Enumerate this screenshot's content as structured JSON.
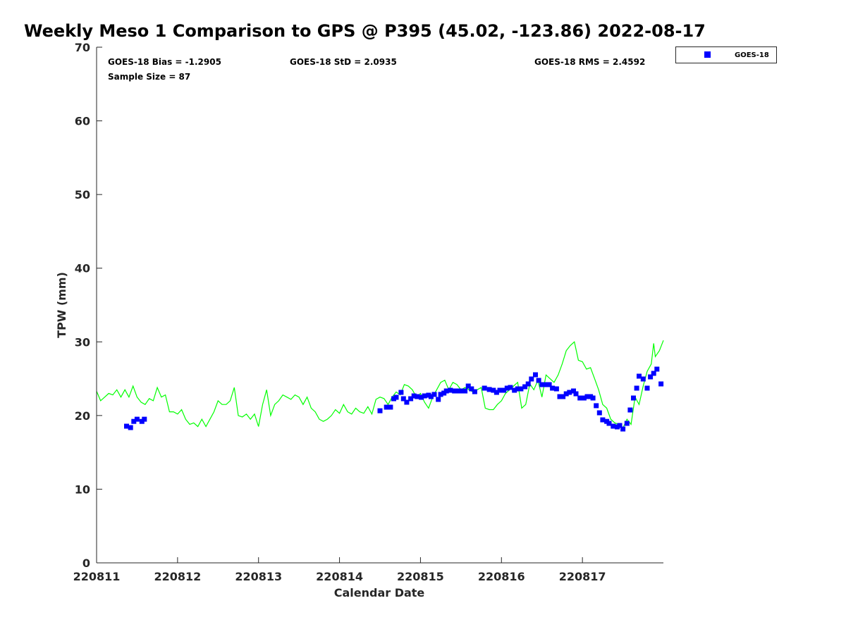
{
  "chart_data": {
    "type": "scatter",
    "title": "Weekly Meso 1 Comparison to GPS @ P395 (45.02, -123.86) 2022-08-17",
    "xlabel": "Calendar Date",
    "ylabel": "TPW (mm)",
    "xlim": [
      0,
      7
    ],
    "ylim": [
      0,
      70
    ],
    "x_units": "days since 220811",
    "x_tick_labels": [
      "220811",
      "220812",
      "220813",
      "220814",
      "220815",
      "220816",
      "220817"
    ],
    "y_ticks": [
      0,
      10,
      20,
      30,
      40,
      50,
      60,
      70
    ],
    "grid": false,
    "legend": {
      "placement": "top-right, outside plot",
      "entries": [
        "GOES-18"
      ]
    },
    "stats": {
      "bias": "GOES-18 Bias = -1.2905",
      "std": "GOES-18 StD = 2.0935",
      "rms": "GOES-18 RMS = 2.4592",
      "sample": "Sample Size = 87"
    },
    "series": [
      {
        "name": "GOES-18",
        "kind": "scatter",
        "color": "#0000ff",
        "points": [
          [
            0.37,
            18.55
          ],
          [
            0.42,
            18.36
          ],
          [
            0.46,
            19.2
          ],
          [
            0.5,
            19.5
          ],
          [
            0.56,
            19.2
          ],
          [
            0.59,
            19.5
          ],
          [
            3.5,
            20.65
          ],
          [
            3.58,
            21.13
          ],
          [
            3.63,
            21.13
          ],
          [
            3.67,
            22.28
          ],
          [
            3.7,
            22.47
          ],
          [
            3.76,
            23.14
          ],
          [
            3.79,
            22.28
          ],
          [
            3.83,
            21.8
          ],
          [
            3.88,
            22.28
          ],
          [
            3.92,
            22.66
          ],
          [
            3.96,
            22.57
          ],
          [
            4.01,
            22.47
          ],
          [
            4.05,
            22.66
          ],
          [
            4.1,
            22.76
          ],
          [
            4.13,
            22.57
          ],
          [
            4.17,
            22.86
          ],
          [
            4.22,
            22.19
          ],
          [
            4.25,
            22.86
          ],
          [
            4.29,
            23.05
          ],
          [
            4.32,
            23.33
          ],
          [
            4.37,
            23.43
          ],
          [
            4.42,
            23.33
          ],
          [
            4.46,
            23.33
          ],
          [
            4.5,
            23.33
          ],
          [
            4.55,
            23.33
          ],
          [
            4.59,
            24.0
          ],
          [
            4.63,
            23.62
          ],
          [
            4.67,
            23.24
          ],
          [
            4.79,
            23.72
          ],
          [
            4.85,
            23.53
          ],
          [
            4.9,
            23.43
          ],
          [
            4.94,
            23.14
          ],
          [
            4.98,
            23.43
          ],
          [
            5.03,
            23.43
          ],
          [
            5.07,
            23.72
          ],
          [
            5.11,
            23.81
          ],
          [
            5.16,
            23.43
          ],
          [
            5.2,
            23.62
          ],
          [
            5.24,
            23.62
          ],
          [
            5.29,
            23.91
          ],
          [
            5.33,
            24.29
          ],
          [
            5.37,
            24.96
          ],
          [
            5.42,
            25.53
          ],
          [
            5.46,
            24.77
          ],
          [
            5.5,
            24.19
          ],
          [
            5.55,
            24.19
          ],
          [
            5.59,
            24.19
          ],
          [
            5.63,
            23.72
          ],
          [
            5.68,
            23.62
          ],
          [
            5.72,
            22.57
          ],
          [
            5.76,
            22.57
          ],
          [
            5.8,
            22.95
          ],
          [
            5.84,
            23.14
          ],
          [
            5.89,
            23.33
          ],
          [
            5.92,
            22.95
          ],
          [
            5.97,
            22.38
          ],
          [
            6.02,
            22.38
          ],
          [
            6.06,
            22.57
          ],
          [
            6.1,
            22.57
          ],
          [
            6.13,
            22.38
          ],
          [
            6.17,
            21.33
          ],
          [
            6.21,
            20.37
          ],
          [
            6.25,
            19.41
          ],
          [
            6.3,
            19.2
          ],
          [
            6.33,
            18.93
          ],
          [
            6.38,
            18.55
          ],
          [
            6.43,
            18.46
          ],
          [
            6.46,
            18.65
          ],
          [
            6.5,
            18.17
          ],
          [
            6.55,
            18.93
          ],
          [
            6.59,
            20.75
          ],
          [
            6.63,
            22.38
          ],
          [
            6.67,
            23.72
          ],
          [
            6.7,
            25.34
          ],
          [
            6.75,
            24.96
          ],
          [
            6.8,
            23.72
          ],
          [
            6.84,
            25.25
          ],
          [
            6.88,
            25.72
          ],
          [
            6.92,
            26.3
          ],
          [
            6.97,
            24.29
          ]
        ]
      },
      {
        "name": "GPS",
        "kind": "line",
        "color": "#00ff00",
        "points": [
          [
            0,
            23.3
          ],
          [
            0.05,
            22
          ],
          [
            0.1,
            22.5
          ],
          [
            0.15,
            23
          ],
          [
            0.2,
            22.8
          ],
          [
            0.25,
            23.5
          ],
          [
            0.3,
            22.5
          ],
          [
            0.35,
            23.5
          ],
          [
            0.4,
            22.5
          ],
          [
            0.45,
            24
          ],
          [
            0.5,
            22.5
          ],
          [
            0.55,
            21.8
          ],
          [
            0.6,
            21.5
          ],
          [
            0.65,
            22.3
          ],
          [
            0.7,
            22
          ],
          [
            0.75,
            23.8
          ],
          [
            0.8,
            22.5
          ],
          [
            0.85,
            22.8
          ],
          [
            0.9,
            20.5
          ],
          [
            0.95,
            20.5
          ],
          [
            1.0,
            20.2
          ],
          [
            1.05,
            20.8
          ],
          [
            1.1,
            19.5
          ],
          [
            1.15,
            18.8
          ],
          [
            1.2,
            19
          ],
          [
            1.25,
            18.5
          ],
          [
            1.3,
            19.5
          ],
          [
            1.35,
            18.5
          ],
          [
            1.4,
            19.5
          ],
          [
            1.45,
            20.5
          ],
          [
            1.5,
            22
          ],
          [
            1.55,
            21.5
          ],
          [
            1.6,
            21.5
          ],
          [
            1.65,
            22
          ],
          [
            1.7,
            23.8
          ],
          [
            1.75,
            20
          ],
          [
            1.8,
            19.8
          ],
          [
            1.85,
            20.2
          ],
          [
            1.9,
            19.5
          ],
          [
            1.95,
            20.2
          ],
          [
            2.0,
            18.5
          ],
          [
            2.05,
            21.5
          ],
          [
            2.1,
            23.5
          ],
          [
            2.15,
            20
          ],
          [
            2.2,
            21.5
          ],
          [
            2.25,
            22
          ],
          [
            2.3,
            22.8
          ],
          [
            2.35,
            22.5
          ],
          [
            2.4,
            22.2
          ],
          [
            2.45,
            22.8
          ],
          [
            2.5,
            22.5
          ],
          [
            2.55,
            21.5
          ],
          [
            2.6,
            22.5
          ],
          [
            2.65,
            21
          ],
          [
            2.7,
            20.5
          ],
          [
            2.75,
            19.5
          ],
          [
            2.8,
            19.2
          ],
          [
            2.85,
            19.5
          ],
          [
            2.9,
            20
          ],
          [
            2.95,
            20.8
          ],
          [
            3.0,
            20.3
          ],
          [
            3.05,
            21.5
          ],
          [
            3.1,
            20.5
          ],
          [
            3.15,
            20.2
          ],
          [
            3.2,
            21
          ],
          [
            3.25,
            20.5
          ],
          [
            3.3,
            20.3
          ],
          [
            3.35,
            21.2
          ],
          [
            3.4,
            20.2
          ],
          [
            3.45,
            22.2
          ],
          [
            3.5,
            22.5
          ],
          [
            3.55,
            22.3
          ],
          [
            3.6,
            21.5
          ],
          [
            3.65,
            22.5
          ],
          [
            3.7,
            23.2
          ],
          [
            3.75,
            22.8
          ],
          [
            3.8,
            24.2
          ],
          [
            3.85,
            24
          ],
          [
            3.9,
            23.5
          ],
          [
            3.95,
            22.5
          ],
          [
            4.0,
            23
          ],
          [
            4.05,
            21.8
          ],
          [
            4.1,
            21
          ],
          [
            4.15,
            22.5
          ],
          [
            4.2,
            23.5
          ],
          [
            4.25,
            24.5
          ],
          [
            4.3,
            24.8
          ],
          [
            4.35,
            23.5
          ],
          [
            4.4,
            24.5
          ],
          [
            4.45,
            24.2
          ],
          [
            4.5,
            23.5
          ],
          [
            4.55,
            23.8
          ],
          [
            4.6,
            23.5
          ],
          [
            4.65,
            23.2
          ],
          [
            4.7,
            23.5
          ],
          [
            4.75,
            23.8
          ],
          [
            4.8,
            21
          ],
          [
            4.85,
            20.8
          ],
          [
            4.9,
            20.8
          ],
          [
            4.95,
            21.5
          ],
          [
            5.0,
            22
          ],
          [
            5.05,
            23
          ],
          [
            5.1,
            23.5
          ],
          [
            5.15,
            24
          ],
          [
            5.2,
            24.5
          ],
          [
            5.25,
            21
          ],
          [
            5.3,
            21.5
          ],
          [
            5.35,
            24.3
          ],
          [
            5.4,
            23.5
          ],
          [
            5.45,
            24.8
          ],
          [
            5.5,
            22.5
          ],
          [
            5.55,
            25.5
          ],
          [
            5.6,
            25
          ],
          [
            5.65,
            24.5
          ],
          [
            5.7,
            25.5
          ],
          [
            5.75,
            27
          ],
          [
            5.8,
            28.8
          ],
          [
            5.85,
            29.5
          ],
          [
            5.9,
            30
          ],
          [
            5.95,
            27.5
          ],
          [
            6.0,
            27.3
          ],
          [
            6.05,
            26.3
          ],
          [
            6.1,
            26.5
          ],
          [
            6.15,
            25
          ],
          [
            6.2,
            23.5
          ],
          [
            6.25,
            21.5
          ],
          [
            6.3,
            21
          ],
          [
            6.35,
            19.5
          ],
          [
            6.4,
            19
          ],
          [
            6.45,
            18.8
          ],
          [
            6.5,
            18.3
          ],
          [
            6.55,
            19.5
          ],
          [
            6.6,
            18.8
          ],
          [
            6.65,
            22.5
          ],
          [
            6.7,
            21.5
          ],
          [
            6.75,
            24
          ],
          [
            6.8,
            26
          ],
          [
            6.85,
            27
          ],
          [
            6.88,
            29.8
          ],
          [
            6.9,
            28
          ],
          [
            6.95,
            28.8
          ],
          [
            7.0,
            30.2
          ]
        ]
      }
    ]
  }
}
